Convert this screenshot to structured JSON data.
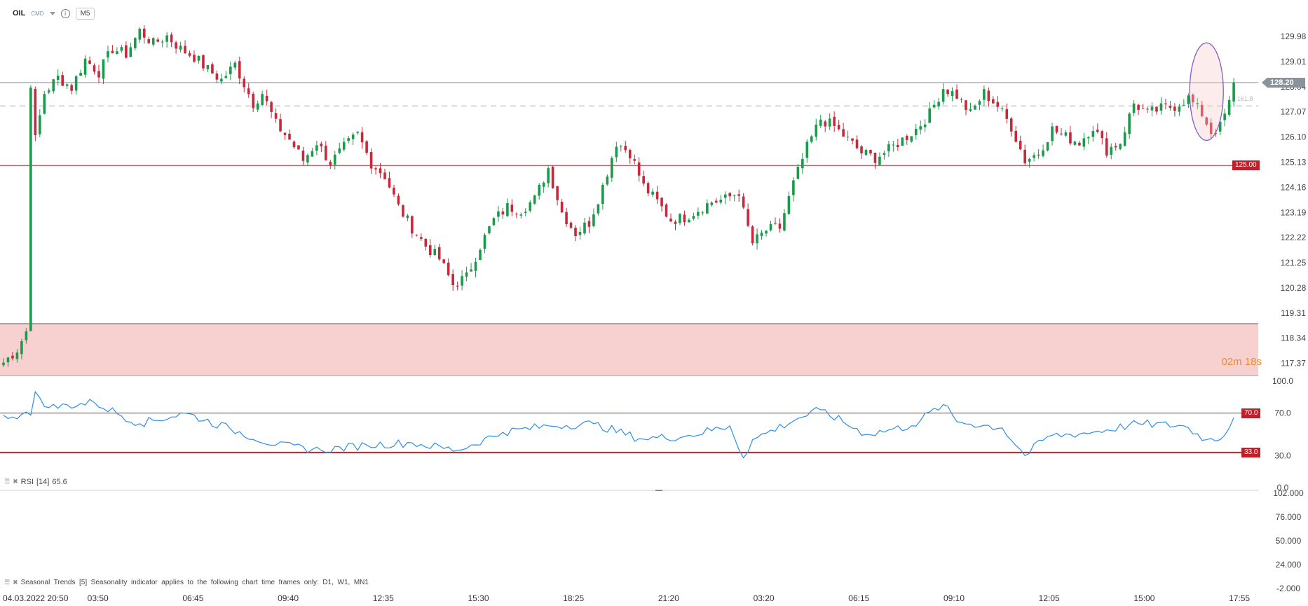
{
  "header": {
    "symbol": "OIL",
    "market": "CMD",
    "timeframe": "M5"
  },
  "countdown": "02m 18s",
  "rsi_label": {
    "name": "RSI",
    "period": "[14]",
    "value": "65.6"
  },
  "seasonal_label": "Seasonal  Trends  [5]  Seasonality  indicator  applies  to  the  following  chart  time  frames  only:  D1,  W1,  MN1",
  "price_tag": "128.20",
  "level_tag": "125.00",
  "fib_label": "161.8",
  "rsi_tags": [
    "70.0",
    "33.0"
  ],
  "colors": {
    "up": "#1a9b4b",
    "down": "#c9273a",
    "level_line": "#c0202a",
    "price_tag_bg": "#8a939b",
    "zone_fill": "#f7d0d0",
    "rsi_line": "#2d8fe6",
    "ellipse": "#7f5fc4"
  },
  "chart_data": [
    {
      "type": "candlestick",
      "title": "OIL",
      "ylim": [
        116.9,
        130.9
      ],
      "y_ticks": [
        "129.98",
        "129.01",
        "128.04",
        "127.07",
        "126.10",
        "125.13",
        "124.16",
        "123.19",
        "122.22",
        "121.25",
        "120.28",
        "119.31",
        "118.34",
        "117.37"
      ],
      "x_ticks": [
        "04.03.2022  20:50",
        "03:50",
        "06:45",
        "09:40",
        "12:35",
        "15:30",
        "18:25",
        "21:20",
        "03:20",
        "06:15",
        "09:10",
        "12:05",
        "15:00",
        "17:55"
      ],
      "last_price": 128.2,
      "horizontal_levels": [
        128.2,
        125.0
      ],
      "fib_level": 127.3,
      "anchor_closes": [
        [
          0,
          117.4
        ],
        [
          3,
          117.9
        ],
        [
          5,
          118.6
        ],
        [
          6,
          128.2
        ],
        [
          7,
          126.0
        ],
        [
          9,
          127.8
        ],
        [
          12,
          128.4
        ],
        [
          15,
          128.0
        ],
        [
          18,
          129.1
        ],
        [
          21,
          128.6
        ],
        [
          24,
          129.5
        ],
        [
          27,
          129.3
        ],
        [
          30,
          130.2
        ],
        [
          33,
          129.7
        ],
        [
          36,
          130.0
        ],
        [
          39,
          129.5
        ],
        [
          42,
          129.2
        ],
        [
          45,
          128.7
        ],
        [
          48,
          128.3
        ],
        [
          51,
          128.9
        ],
        [
          55,
          127.4
        ],
        [
          57,
          127.8
        ],
        [
          60,
          126.6
        ],
        [
          63,
          126.0
        ],
        [
          66,
          125.2
        ],
        [
          69,
          125.9
        ],
        [
          72,
          125.1
        ],
        [
          75,
          125.7
        ],
        [
          78,
          126.2
        ],
        [
          81,
          125.1
        ],
        [
          84,
          124.6
        ],
        [
          87,
          123.4
        ],
        [
          90,
          122.6
        ],
        [
          93,
          121.9
        ],
        [
          96,
          121.4
        ],
        [
          99,
          120.4
        ],
        [
          102,
          120.7
        ],
        [
          105,
          121.9
        ],
        [
          108,
          122.9
        ],
        [
          111,
          123.4
        ],
        [
          114,
          123.3
        ],
        [
          117,
          123.7
        ],
        [
          120,
          124.9
        ],
        [
          123,
          123.2
        ],
        [
          126,
          122.4
        ],
        [
          129,
          122.8
        ],
        [
          132,
          124.2
        ],
        [
          135,
          125.9
        ],
        [
          138,
          125.5
        ],
        [
          141,
          124.2
        ],
        [
          144,
          123.6
        ],
        [
          147,
          122.9
        ],
        [
          150,
          123.0
        ],
        [
          153,
          123.3
        ],
        [
          156,
          123.6
        ],
        [
          159,
          123.7
        ],
        [
          162,
          124.0
        ],
        [
          163,
          123.2
        ],
        [
          165,
          122.0
        ],
        [
          168,
          122.5
        ],
        [
          171,
          122.6
        ],
        [
          174,
          124.3
        ],
        [
          177,
          125.7
        ],
        [
          180,
          126.8
        ],
        [
          183,
          126.5
        ],
        [
          186,
          126.0
        ],
        [
          189,
          125.5
        ],
        [
          192,
          125.3
        ],
        [
          195,
          125.6
        ],
        [
          198,
          126.0
        ],
        [
          201,
          126.4
        ],
        [
          204,
          127.0
        ],
        [
          207,
          128.0
        ],
        [
          210,
          127.7
        ],
        [
          213,
          127.0
        ],
        [
          216,
          127.8
        ],
        [
          219,
          127.3
        ],
        [
          222,
          126.5
        ],
        [
          225,
          125.2
        ],
        [
          228,
          125.5
        ],
        [
          231,
          126.4
        ],
        [
          234,
          126.1
        ],
        [
          237,
          125.9
        ],
        [
          240,
          126.5
        ],
        [
          243,
          125.6
        ],
        [
          246,
          125.9
        ],
        [
          249,
          127.4
        ],
        [
          252,
          127.0
        ],
        [
          255,
          127.2
        ],
        [
          258,
          127.3
        ],
        [
          261,
          127.6
        ],
        [
          264,
          127.0
        ],
        [
          266,
          126.3
        ],
        [
          268,
          126.5
        ],
        [
          270,
          127.4
        ],
        [
          271,
          128.2
        ]
      ]
    },
    {
      "type": "line",
      "title": "RSI [14]",
      "ylim": [
        0,
        100
      ],
      "y_ticks": [
        "100.0",
        "70.0",
        "30.0",
        "0.0"
      ],
      "levels": [
        70.0,
        33.0
      ],
      "last_value": 65.6,
      "x": [
        0,
        6,
        7,
        10,
        20,
        30,
        40,
        50,
        60,
        70,
        80,
        90,
        100,
        110,
        120,
        130,
        140,
        150,
        160,
        163,
        165,
        175,
        180,
        190,
        200,
        207,
        210,
        220,
        225,
        230,
        240,
        250,
        260,
        265,
        268,
        271
      ],
      "y": [
        68,
        68,
        90,
        75,
        80,
        60,
        70,
        55,
        40,
        35,
        40,
        42,
        35,
        52,
        58,
        60,
        46,
        48,
        58,
        28,
        45,
        65,
        73,
        50,
        58,
        78,
        62,
        56,
        30,
        48,
        52,
        60,
        58,
        45,
        45,
        65.6
      ]
    },
    {
      "type": "line",
      "title": "Seasonal Trends [5]",
      "y_ticks": [
        "102.000",
        "76.000",
        "50.000",
        "24.000",
        "-2.000"
      ]
    }
  ]
}
